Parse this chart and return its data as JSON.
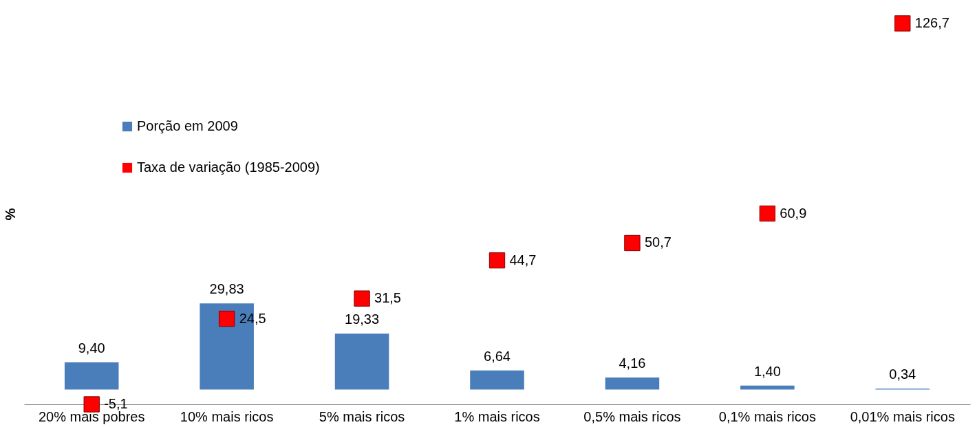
{
  "chart_data": {
    "type": "bar",
    "ylabel": "%",
    "categories": [
      "20% mais pobres",
      "10% mais ricos",
      "5% mais ricos",
      "1% mais ricos",
      "0,5% mais ricos",
      "0,1% mais ricos",
      "0,01% mais ricos"
    ],
    "series": [
      {
        "name": "Porção em 2009",
        "color": "#4a7ebb",
        "values": [
          9.4,
          29.83,
          19.33,
          6.64,
          4.16,
          1.4,
          0.34
        ],
        "value_labels": [
          "9,40",
          "29,83",
          "19,33",
          "6,64",
          "4,16",
          "1,40",
          "0,34"
        ]
      },
      {
        "name": "Taxa de variação (1985-2009)",
        "type": "scatter",
        "color": "#ff0000",
        "marker": "square",
        "values": [
          -5.1,
          24.5,
          31.5,
          44.7,
          50.7,
          60.9,
          126.7
        ],
        "value_labels": [
          "-5,1",
          "24,5",
          "31,5",
          "44,7",
          "50,7",
          "60,9",
          "126,7"
        ]
      }
    ],
    "data_labels": true,
    "legend": "top left",
    "grid": false,
    "tick_labels": "x"
  }
}
